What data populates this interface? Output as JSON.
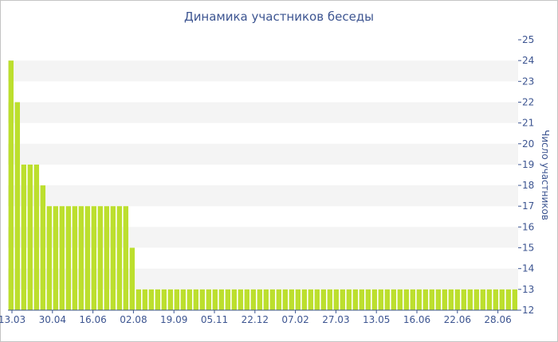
{
  "chart_data": {
    "type": "bar",
    "title": "Динамика участников беседы",
    "xlabel": "",
    "ylabel": "Число участников",
    "ylim": [
      12,
      25
    ],
    "y_ticks": [
      12,
      13,
      14,
      15,
      16,
      17,
      18,
      19,
      20,
      21,
      22,
      23,
      24,
      25
    ],
    "x_tick_labels": [
      "13.03",
      "30.04",
      "16.06",
      "02.08",
      "19.09",
      "05.11",
      "22.12",
      "07.02",
      "27.03",
      "13.05",
      "16.06",
      "22.06",
      "28.06"
    ],
    "grid": "alternating-horizontal-bands",
    "bar_color": "#bcdf2e",
    "values": [
      24,
      22,
      19,
      19,
      19,
      18,
      17,
      17,
      17,
      17,
      17,
      17,
      17,
      17,
      17,
      17,
      17,
      17,
      17,
      15,
      13,
      13,
      13,
      13,
      13,
      13,
      13,
      13,
      13,
      13,
      13,
      13,
      13,
      13,
      13,
      13,
      13,
      13,
      13,
      13,
      13,
      13,
      13,
      13,
      13,
      13,
      13,
      13,
      13,
      13,
      13,
      13,
      13,
      13,
      13,
      13,
      13,
      13,
      13,
      13,
      13,
      13,
      13,
      13,
      13,
      13,
      13,
      13,
      13,
      13,
      13,
      13,
      13,
      13,
      13,
      13,
      13,
      13,
      13,
      13
    ]
  }
}
